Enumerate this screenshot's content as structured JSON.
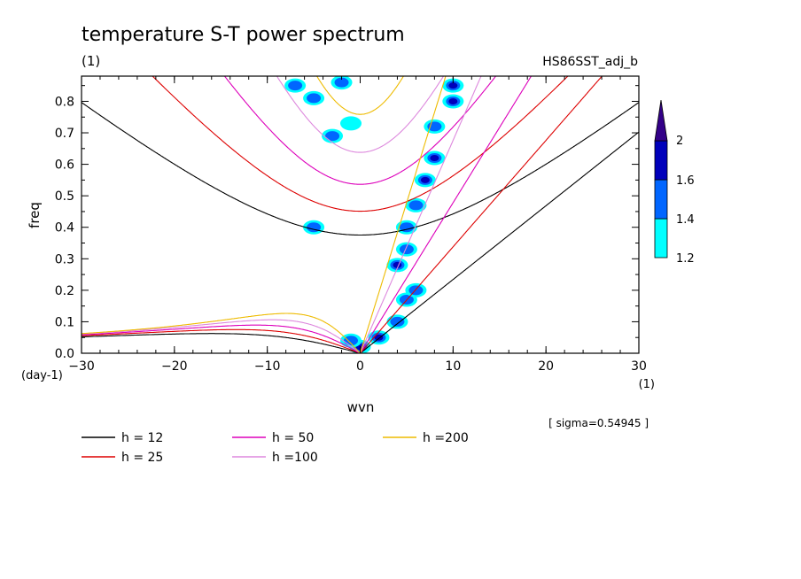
{
  "chart_data": {
    "type": "line",
    "title": "temperature S-T power spectrum",
    "subtitle_left": "(1)",
    "subtitle_right": "HS86SST_adj_b",
    "xlabel": "wvn",
    "ylabel": "freq",
    "x_unit": "(1)",
    "y_unit": "(day-1)",
    "xlim": [
      -30,
      30
    ],
    "ylim": [
      0,
      0.88
    ],
    "xticks": [
      -30,
      -20,
      -10,
      0,
      10,
      20,
      30
    ],
    "yticks": [
      0.0,
      0.1,
      0.2,
      0.3,
      0.4,
      0.5,
      0.6,
      0.7,
      0.8
    ],
    "ytick_labels": [
      "0.0",
      "0.1",
      "0.2",
      "0.3",
      "0.4",
      "0.5",
      "0.6",
      "0.7",
      "0.8"
    ],
    "annotation": "[ sigma=0.54945 ]",
    "colorbar": {
      "levels": [
        "1.2",
        "1.4",
        "1.6",
        "2"
      ],
      "colors": [
        "#00ffff",
        "#0066ff",
        "#0000bb",
        "#330088"
      ]
    },
    "series": [
      {
        "name": "h = 12",
        "h": 12,
        "color": "#000000"
      },
      {
        "name": "h = 25",
        "h": 25,
        "color": "#dd0000"
      },
      {
        "name": "h = 50",
        "h": 50,
        "color": "#dd00bb"
      },
      {
        "name": "h =100",
        "h": 100,
        "color": "#dd88dd"
      },
      {
        "name": "h =200",
        "h": 200,
        "color": "#eebb00"
      }
    ],
    "spectral_blobs": [
      {
        "x": 0,
        "y": 0.02,
        "level": 3
      },
      {
        "x": -1,
        "y": 0.04,
        "level": 2
      },
      {
        "x": 2,
        "y": 0.05,
        "level": 3
      },
      {
        "x": 4,
        "y": 0.1,
        "level": 2
      },
      {
        "x": 5,
        "y": 0.17,
        "level": 2
      },
      {
        "x": 6,
        "y": 0.2,
        "level": 2
      },
      {
        "x": 4,
        "y": 0.28,
        "level": 3
      },
      {
        "x": 5,
        "y": 0.33,
        "level": 2
      },
      {
        "x": 5,
        "y": 0.4,
        "level": 2
      },
      {
        "x": 6,
        "y": 0.47,
        "level": 2
      },
      {
        "x": 7,
        "y": 0.55,
        "level": 3
      },
      {
        "x": 8,
        "y": 0.62,
        "level": 3
      },
      {
        "x": 8,
        "y": 0.72,
        "level": 2
      },
      {
        "x": 10,
        "y": 0.8,
        "level": 3
      },
      {
        "x": 10,
        "y": 0.85,
        "level": 3
      },
      {
        "x": -5,
        "y": 0.4,
        "level": 2
      },
      {
        "x": -5,
        "y": 0.81,
        "level": 2
      },
      {
        "x": -2,
        "y": 0.86,
        "level": 2
      },
      {
        "x": -3,
        "y": 0.69,
        "level": 2
      },
      {
        "x": -7,
        "y": 0.85,
        "level": 2
      },
      {
        "x": -1,
        "y": 0.73,
        "level": 1
      }
    ]
  }
}
